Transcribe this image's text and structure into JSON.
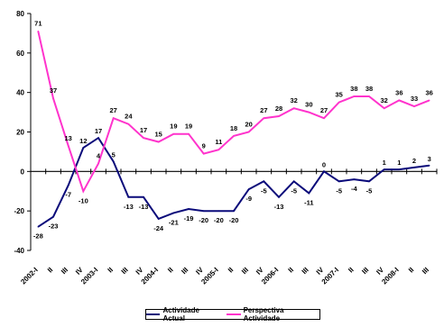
{
  "chart_data": {
    "type": "line",
    "title": "",
    "xlabel": "",
    "ylabel": "",
    "ylim": [
      -40,
      80
    ],
    "yticks": [
      -40,
      -20,
      0,
      20,
      40,
      60,
      80
    ],
    "grid": false,
    "legend_position": "bottom",
    "categories": [
      "2002-I",
      "II",
      "III",
      "IV",
      "2003-I",
      "II",
      "III",
      "IV",
      "2004-I",
      "II",
      "III",
      "IV",
      "2005-I",
      "II",
      "III",
      "IV",
      "2006-I",
      "II",
      "III",
      "IV",
      "2007-I",
      "II",
      "III",
      "IV",
      "2008-I",
      "II",
      "III"
    ],
    "series": [
      {
        "name": "Actividade Actual",
        "color": "#0a0a7a",
        "values": [
          -28,
          -23,
          -7,
          12,
          17,
          5,
          -13,
          -13,
          -24,
          -21,
          -19,
          -20,
          -20,
          -20,
          -9,
          -5,
          -13,
          -5,
          -11,
          0,
          -5,
          -4,
          -5,
          1,
          1,
          2,
          3
        ],
        "labels": [
          "-28",
          "-23",
          "-7",
          "12",
          "17",
          "5",
          "-13",
          "-13",
          "-24",
          "-21",
          "-19",
          "-20",
          "-20",
          "-20",
          "-9",
          "-5",
          "-13",
          "-5",
          "-11",
          "0",
          "-5",
          "-4",
          "-5",
          "1",
          "1",
          "2",
          "3"
        ]
      },
      {
        "name": "Perspectiva Actividade",
        "color": "#ff33cc",
        "values": [
          71,
          37,
          13,
          -10,
          4,
          27,
          24,
          17,
          15,
          19,
          19,
          9,
          11,
          18,
          20,
          27,
          28,
          32,
          30,
          27,
          35,
          38,
          38,
          32,
          36,
          33,
          36
        ],
        "labels": [
          "71",
          "37",
          "13",
          "-10",
          "4",
          "27",
          "24",
          "17",
          "15",
          "19",
          "19",
          "9",
          "11",
          "18",
          "20",
          "27",
          "28",
          "32",
          "30",
          "27",
          "35",
          "38",
          "38",
          "32",
          "36",
          "33",
          "36"
        ]
      }
    ]
  }
}
